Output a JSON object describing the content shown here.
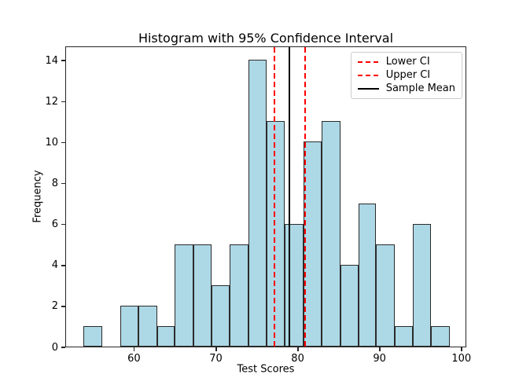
{
  "figure": {
    "background": "#ffffff"
  },
  "chart_data": {
    "type": "bar",
    "subtype": "histogram",
    "title": "Histogram with 95% Confidence Interval",
    "xlabel": "Test Scores",
    "ylabel": "Frequency",
    "xlim": [
      51.6,
      100.6
    ],
    "ylim": [
      0,
      14.7
    ],
    "xticks": [
      60,
      70,
      80,
      90,
      100
    ],
    "yticks": [
      0,
      2,
      4,
      6,
      8,
      10,
      12,
      14
    ],
    "grid": false,
    "bin_edges": [
      53.7,
      56.0,
      58.2,
      60.4,
      62.7,
      64.9,
      67.2,
      69.4,
      71.6,
      73.9,
      76.1,
      78.3,
      80.6,
      82.8,
      85.1,
      87.3,
      89.5,
      91.8,
      94.0,
      96.2,
      98.5
    ],
    "counts": [
      1,
      0,
      2,
      2,
      1,
      5,
      5,
      3,
      5,
      14,
      11,
      6,
      10,
      11,
      4,
      7,
      5,
      1,
      6,
      1
    ],
    "total_count": 100,
    "bar_fill": "#ADD8E6",
    "bar_edge": "#2b2b2b",
    "lines": [
      {
        "name": "lower-ci",
        "value": 77.1,
        "color": "#ff0000",
        "style": "dashed",
        "label": "Lower CI"
      },
      {
        "name": "upper-ci",
        "value": 80.8,
        "color": "#ff0000",
        "style": "dashed",
        "label": "Upper CI"
      },
      {
        "name": "sample-mean",
        "value": 78.9,
        "color": "#000000",
        "style": "solid",
        "label": "Sample Mean"
      }
    ],
    "legend": {
      "position": "upper right"
    }
  }
}
